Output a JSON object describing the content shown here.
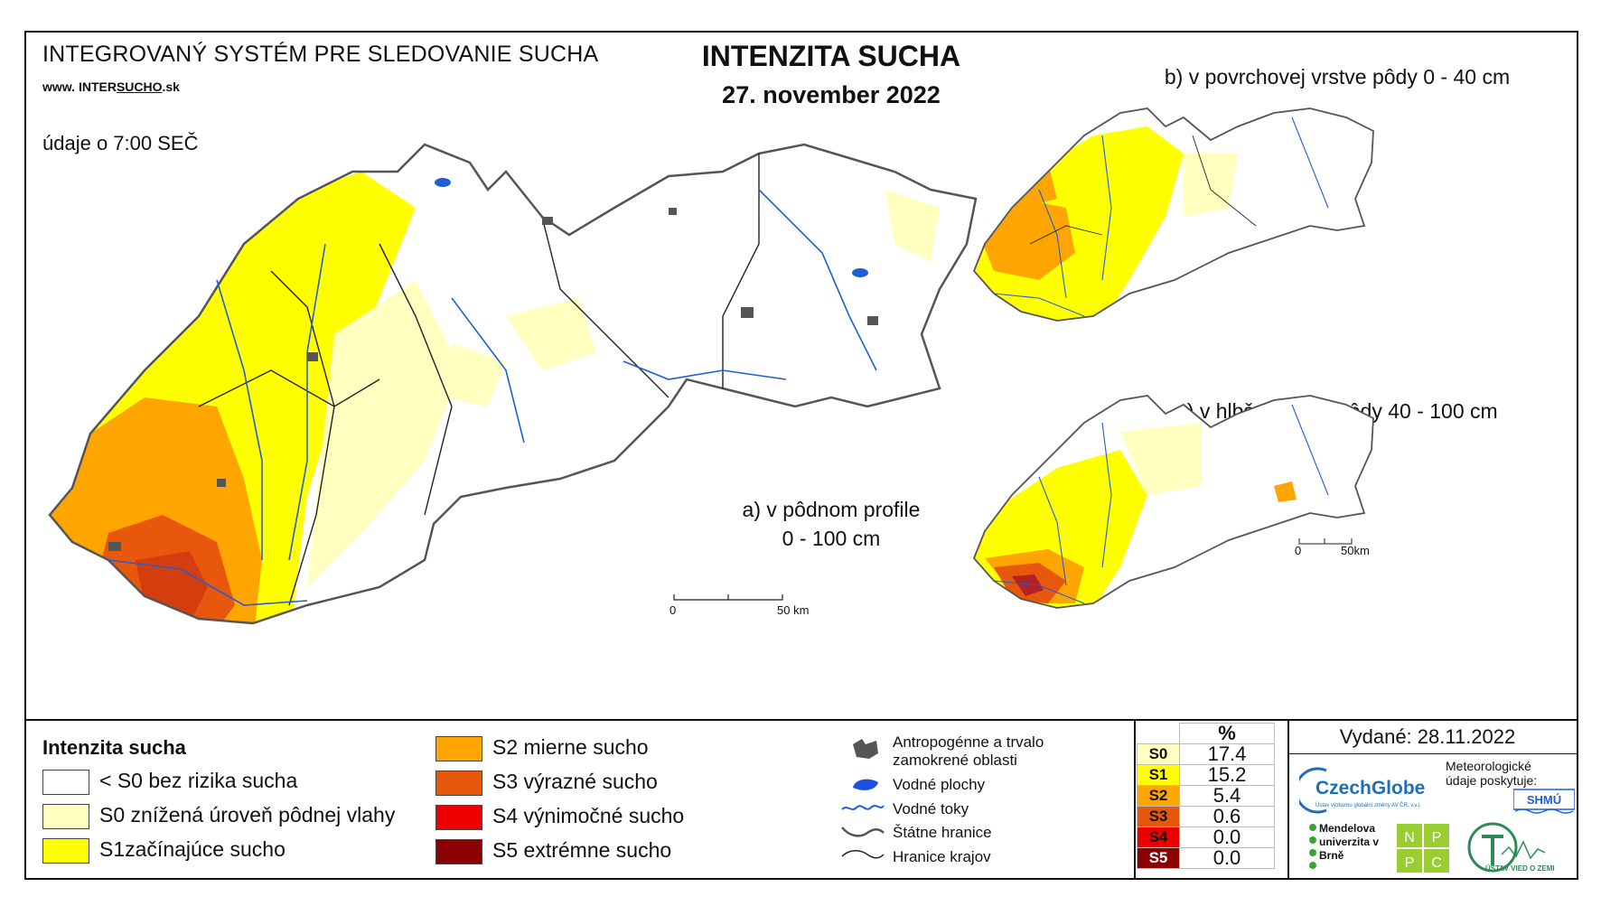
{
  "header": {
    "system_title": "INTEGROVANÝ SYSTÉM PRE SLEDOVANIE SUCHA",
    "www_prefix": "www.",
    "www_a": "INTER",
    "www_b": "SUCHO",
    "www_c": ".sk",
    "data_time": "údaje o 7:00 SEČ",
    "main_title": "INTENZITA SUCHA",
    "date": "27. november 2022"
  },
  "maps": {
    "a_line1": "a) v pôdnom profile",
    "a_line2": "0 - 100 cm",
    "b_title": "b) v povrchovej vrstve pôdy 0 - 40 cm",
    "c_title": "c) v hlbšej vrstve pôdy 40 - 100 cm",
    "scale_zero": "0",
    "scale_main": "50 km",
    "scale_small": "50km"
  },
  "legend": {
    "title": "Intenzita sucha",
    "classes": [
      {
        "label": "< S0 bez rizika sucha",
        "color": "#ffffff"
      },
      {
        "label": "S0 znížená úroveň pôdnej vlahy",
        "color": "#ffffc0"
      },
      {
        "label": "S1začínajúce sucho",
        "color": "#ffff00"
      },
      {
        "label": "S2 mierne sucho",
        "color": "#ffa500"
      },
      {
        "label": "S3 výrazné sucho",
        "color": "#e8580c"
      },
      {
        "label": "S4 výnimočné sucho",
        "color": "#ee0000"
      },
      {
        "label": "S5 extrémne sucho",
        "color": "#8b0000"
      }
    ],
    "symbols": {
      "urban": "Antropogénne a trvalo zamokrené oblasti",
      "water": "Vodné plochy",
      "rivers": "Vodné toky",
      "border": "Štátne hranice",
      "regions": "Hranice krajov"
    }
  },
  "percent_table": {
    "header": "%",
    "rows": [
      {
        "code": "S0",
        "value": "17.4",
        "color": "#ffffc0"
      },
      {
        "code": "S1",
        "value": "15.2",
        "color": "#ffff00"
      },
      {
        "code": "S2",
        "value": "5.4",
        "color": "#ffa500"
      },
      {
        "code": "S3",
        "value": "0.6",
        "color": "#e8580c"
      },
      {
        "code": "S4",
        "value": "0.0",
        "color": "#ee0000"
      },
      {
        "code": "S5",
        "value": "0.0",
        "color": "#8b0000"
      }
    ]
  },
  "footer": {
    "issued": "Vydané: 28.11.2022",
    "czechglobe": "CzechGlobe",
    "czechglobe_sub": "Ústav výzkumu globální změny AV ČR, v.v.i.",
    "meteo": "Meteorologické údaje poskytuje:",
    "shmu": "SHMÚ",
    "mendel": "Mendelova univerzita v Brně",
    "npc": [
      "N",
      "P",
      "P",
      "C"
    ],
    "uvz": "ÚSTAV VIED O ZEMI"
  }
}
